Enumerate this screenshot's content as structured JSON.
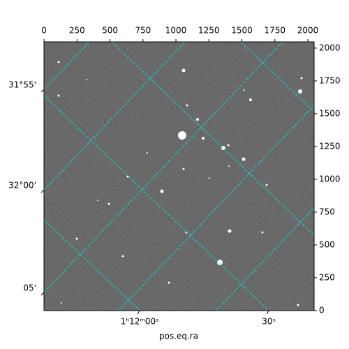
{
  "chart_data": {
    "type": "image",
    "xlabel": "pos.eq.ra",
    "xlim": [
      -0.5,
      2047.5
    ],
    "ylim": [
      -0.5,
      2047.5
    ],
    "xticks": [
      0,
      250,
      500,
      750,
      1000,
      1250,
      1500,
      1750,
      2000
    ],
    "yticks": [
      0,
      250,
      500,
      750,
      1000,
      1250,
      1500,
      1750,
      2000
    ],
    "grid_color": "#00dede",
    "ra_grid": [
      {
        "label": "1ʰ12ᵐ00ˢ",
        "x": [
          0,
          725
        ],
        "y": [
          691,
          0
        ]
      },
      {
        "label": "30ˢ",
        "x": [
          0,
          1704
        ],
        "y": [
          1638,
          0
        ]
      },
      {
        "x": [
          513,
          2048
        ],
        "y": [
          2048,
          574
        ]
      },
      {
        "x": [
          1492,
          2048
        ],
        "y": [
          2048,
          1516
        ]
      }
    ],
    "dec_grid": [
      {
        "label": "31°55'",
        "x": [
          0,
          344
        ],
        "y": [
          1686,
          2048
        ]
      },
      {
        "label": "32°00'",
        "x": [
          0,
          1069
        ],
        "y": [
          920,
          2048
        ]
      },
      {
        "label": "05'",
        "x": [
          0,
          1810
        ],
        "y": [
          138,
          2048
        ]
      },
      {
        "x": [
          566,
          2048
        ],
        "y": [
          0,
          1564
        ]
      },
      {
        "x": [
          1307,
          2048
        ],
        "y": [
          0,
          782
        ]
      }
    ]
  }
}
